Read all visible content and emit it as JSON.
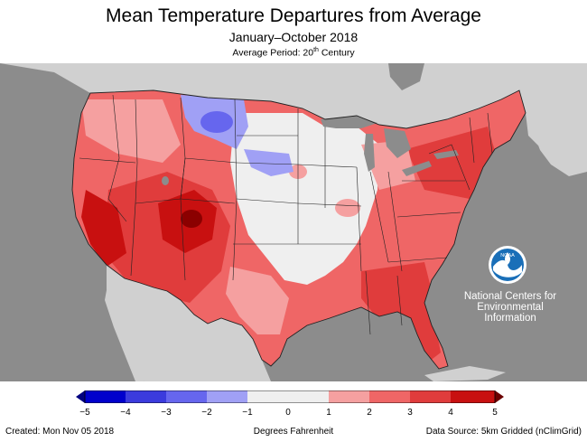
{
  "header": {
    "title": "Mean Temperature Departures from Average",
    "subtitle": "January–October 2018",
    "period_prefix": "Average Period: 20",
    "period_sup": "th",
    "period_suffix": " Century"
  },
  "branding": {
    "logo_text": "NOAA",
    "caption_line1": "National Centers for",
    "caption_line2": "Environmental",
    "caption_line3": "Information"
  },
  "legend": {
    "ticks": [
      "−5",
      "−4",
      "−3",
      "−2",
      "−1",
      "0",
      "1",
      "2",
      "3",
      "4",
      "5"
    ],
    "units": "Degrees Fahrenheit",
    "colors": [
      "#0000cc",
      "#3b3bdd",
      "#6666ee",
      "#a0a0f5",
      "#efefef",
      "#efefef",
      "#f5a0a0",
      "#ef6666",
      "#e03c3c",
      "#c81010"
    ]
  },
  "footer": {
    "created": "Created: Mon Nov 05 2018",
    "source": "Data Source: 5km Gridded (nClimGrid)"
  },
  "colors": {
    "ocean": "#8c8c8c",
    "land_outside": "#d0d0d0",
    "lakes": "#8c8c8c",
    "near_normal": "#efefef",
    "warm1": "#f5a0a0",
    "warm2": "#ef6666",
    "warm3": "#e03c3c",
    "warm4": "#c81010",
    "hot": "#8b0000",
    "cool1": "#a0a0f5",
    "cool2": "#6666ee"
  }
}
